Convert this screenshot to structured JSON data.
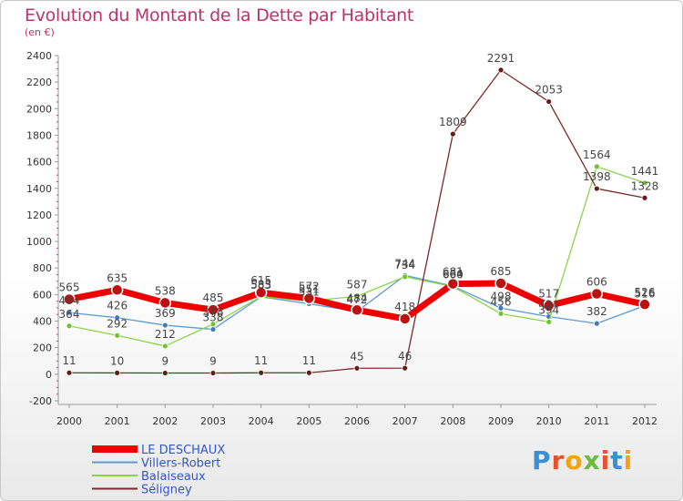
{
  "title": "Evolution du Montant de la Dette par Habitant",
  "unit_label": "(en €)",
  "logo_text": "Proxiti",
  "logo_colors": [
    "#3a8fd6",
    "#e8512a",
    "#f2a316",
    "#6dbb3c",
    "#e8512a",
    "#3a8fd6",
    "#f2a316"
  ],
  "chart_data": {
    "type": "line",
    "title": "Evolution du Montant de la Dette par Habitant",
    "ylabel": "(en €)",
    "x": [
      "2000",
      "2001",
      "2002",
      "2003",
      "2004",
      "2005",
      "2006",
      "2007",
      "2008",
      "2009",
      "2010",
      "2011",
      "2012"
    ],
    "ylim": [
      -200,
      2400
    ],
    "yticks": [
      -200,
      0,
      200,
      400,
      600,
      800,
      1000,
      1200,
      1400,
      1600,
      1800,
      2000,
      2200,
      2400
    ],
    "grid": false,
    "legend_position": "bottom-left",
    "series": [
      {
        "name": "LE DESCHAUX",
        "color": "#ee0000",
        "marker_color": "#bb1111",
        "width": 7,
        "values": [
          565,
          635,
          538,
          485,
          615,
          572,
          484,
          418,
          681,
          685,
          517,
          606,
          526
        ]
      },
      {
        "name": "Villers-Robert",
        "color": "#5b9bd5",
        "marker_color": "#3f79c0",
        "width": 1.3,
        "values": [
          464,
          426,
          369,
          338,
          583,
          531,
          472,
          744,
          664,
          498,
          434,
          382,
          516
        ]
      },
      {
        "name": "Balaiseaux",
        "color": "#8bd44a",
        "marker_color": "#72c32e",
        "width": 1.3,
        "values": [
          364,
          292,
          212,
          378,
          585,
          551,
          587,
          734,
          660,
          456,
          394,
          1564,
          1441
        ]
      },
      {
        "name": "Séligney",
        "color": "#7a2a2a",
        "marker_color": "#6a1818",
        "width": 1.3,
        "values": [
          11,
          10,
          9,
          9,
          11,
          11,
          45,
          46,
          1809,
          2291,
          2053,
          1398,
          1328
        ]
      }
    ]
  }
}
